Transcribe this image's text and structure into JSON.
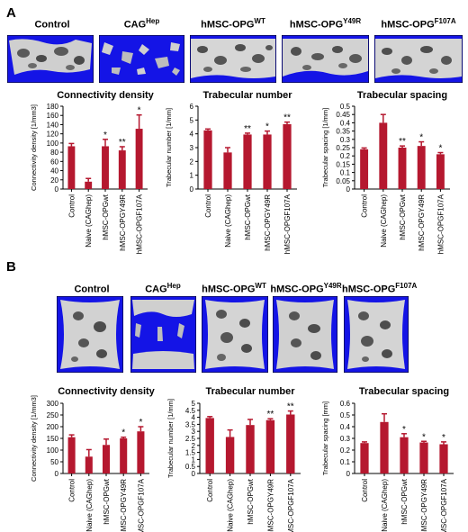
{
  "panels": [
    {
      "letter": "A",
      "images": [
        {
          "label": "Control",
          "sup": ""
        },
        {
          "label": "CAG",
          "sup": "Hep"
        },
        {
          "label": "hMSC-OPG",
          "sup": "WT"
        },
        {
          "label": "hMSC-OPG",
          "sup": "Y49R"
        },
        {
          "label": "hMSC-OPG",
          "sup": "F107A"
        }
      ]
    },
    {
      "letter": "B",
      "images": [
        {
          "label": "Control",
          "sup": ""
        },
        {
          "label": "CAG",
          "sup": "Hep"
        },
        {
          "label": "hMSC-OPG",
          "sup": "WT"
        },
        {
          "label": "hMSC-OPG",
          "sup": "Y49R"
        },
        {
          "label": "hMSC-OPG",
          "sup": "F107A"
        }
      ]
    }
  ],
  "colors": {
    "bar": "#b5182f",
    "ct_background": "#1414e6"
  },
  "chart_data": [
    {
      "type": "bar",
      "title": "Connectivity density",
      "ylabel": "Connectivity density [1/mm3]",
      "categories": [
        "Control",
        "Naive (CAGhep)",
        "hMSC-OPGwt",
        "hMSC-OPGY49R",
        "hMSC-OPGF107A"
      ],
      "values": [
        93,
        16,
        93,
        84,
        131
      ],
      "errors": [
        6,
        7,
        15,
        8,
        30
      ],
      "significance": [
        "",
        "",
        "*",
        "**",
        "*"
      ],
      "ylim": [
        0,
        180
      ],
      "yticks": [
        0,
        20,
        40,
        60,
        80,
        100,
        120,
        140,
        160,
        180
      ]
    },
    {
      "type": "bar",
      "title": "Trabecular number",
      "ylabel": "Trabecular number [1/mm]",
      "categories": [
        "Control",
        "Naive (CAGhep)",
        "hMSC-OPGwt",
        "hMSC-OPGY49R",
        "hMSC-OPGF107A"
      ],
      "values": [
        4.25,
        2.65,
        3.95,
        3.95,
        4.7
      ],
      "errors": [
        0.1,
        0.35,
        0.1,
        0.25,
        0.15
      ],
      "significance": [
        "",
        "",
        "**",
        "*",
        "**"
      ],
      "ylim": [
        0,
        6
      ],
      "yticks": [
        0,
        1,
        2,
        3,
        4,
        5,
        6
      ]
    },
    {
      "type": "bar",
      "title": "Trabecular spacing",
      "ylabel": "Trabecular spacing [1/mm]",
      "categories": [
        "Control",
        "Naive (CAGhep)",
        "hMSC-OPGwt",
        "hMSC-OPGY49R",
        "hMSC-OPGF107A"
      ],
      "values": [
        0.24,
        0.4,
        0.25,
        0.26,
        0.21
      ],
      "errors": [
        0.008,
        0.05,
        0.01,
        0.025,
        0.01
      ],
      "significance": [
        "",
        "",
        "**",
        "*",
        "*"
      ],
      "ylim": [
        0,
        0.5
      ],
      "yticks": [
        0,
        0.05,
        0.1,
        0.15,
        0.2,
        0.25,
        0.3,
        0.35,
        0.4,
        0.45,
        0.5
      ]
    },
    {
      "type": "bar",
      "title": "Connectivity density",
      "ylabel": "Connectivity density [1/mm3]",
      "categories": [
        "Control",
        "Naive (CAGhep)",
        "hMSC-OPGwt",
        "hMSC-OPGY49R",
        "hMSC-OPGF107A"
      ],
      "values": [
        155,
        72,
        122,
        150,
        180
      ],
      "errors": [
        10,
        30,
        25,
        5,
        20
      ],
      "significance": [
        "",
        "",
        "",
        "*",
        "*"
      ],
      "ylim": [
        0,
        300
      ],
      "yticks": [
        0,
        50,
        100,
        150,
        200,
        250,
        300
      ]
    },
    {
      "type": "bar",
      "title": "Trabecular number",
      "ylabel": "Trabecular number [1/mm]",
      "categories": [
        "Control",
        "Naive (CAGhep)",
        "hMSC-OPGwt",
        "hMSC-OPGY49R",
        "hMSC-OPGF107A"
      ],
      "values": [
        3.95,
        2.6,
        3.45,
        3.8,
        4.2
      ],
      "errors": [
        0.1,
        0.5,
        0.4,
        0.1,
        0.25
      ],
      "significance": [
        "",
        "",
        "",
        "**",
        "**"
      ],
      "ylim": [
        0,
        5
      ],
      "yticks": [
        0,
        0.5,
        1,
        1.5,
        2,
        2.5,
        3,
        3.5,
        4,
        4.5,
        5
      ]
    },
    {
      "type": "bar",
      "title": "Trabecular spacing",
      "ylabel": "Trabecular spacing [mm]",
      "categories": [
        "Control",
        "Naive (CAGhep)",
        "hMSC-OPGwt",
        "hMSC-OPGY49R",
        "hMSC-OPGF107A"
      ],
      "values": [
        0.26,
        0.44,
        0.31,
        0.265,
        0.25
      ],
      "errors": [
        0.01,
        0.07,
        0.03,
        0.01,
        0.02
      ],
      "significance": [
        "",
        "",
        "*",
        "*",
        "*"
      ],
      "ylim": [
        0,
        0.6
      ],
      "yticks": [
        0,
        0.1,
        0.2,
        0.3,
        0.4,
        0.5,
        0.6
      ]
    }
  ]
}
